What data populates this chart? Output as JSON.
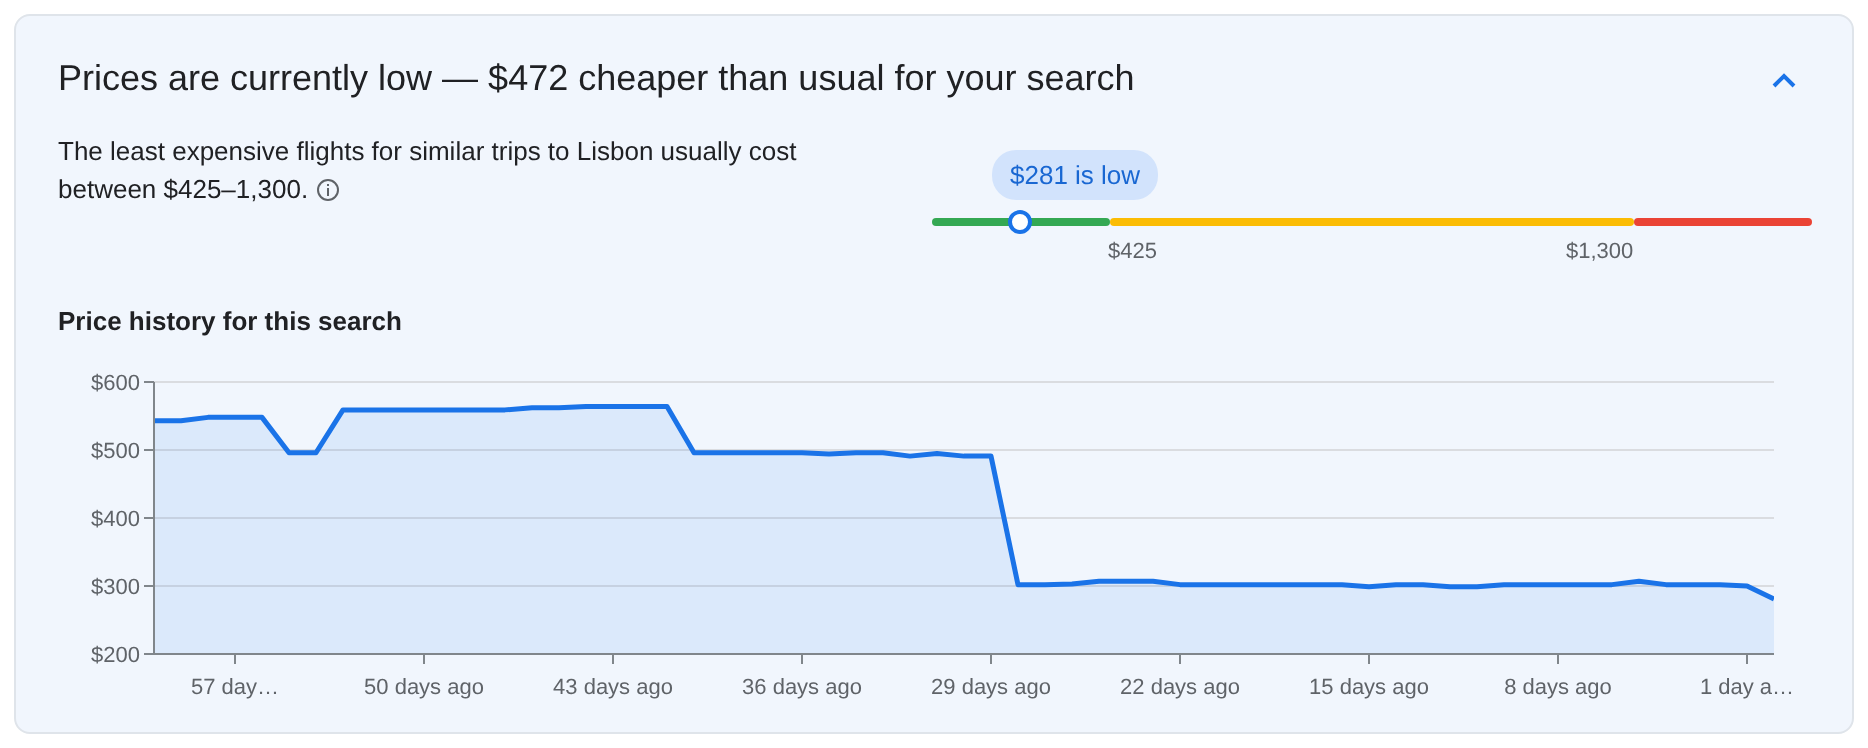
{
  "chart_data": [
    {
      "type": "other",
      "title": "Prices are currently low — $472 cheaper than usual for your search",
      "annotations": [
        "The least expensive flights for similar trips to Lisbon usually cost between $425–1,300.",
        "$281 is low",
        "$425",
        "$1,300"
      ]
    },
    {
      "type": "area",
      "title": "Price history for this search",
      "color": "#1a73e8",
      "grid": "y",
      "ylim": [
        200,
        600
      ],
      "yticks": [
        {
          "value": 200,
          "label": "$200"
        },
        {
          "value": 300,
          "label": "$300"
        },
        {
          "value": 400,
          "label": "$400"
        },
        {
          "value": 500,
          "label": "$500"
        },
        {
          "value": 600,
          "label": "$600"
        }
      ],
      "categories": [
        null,
        null,
        null,
        "57 day…",
        null,
        null,
        null,
        null,
        null,
        null,
        "50 days ago",
        null,
        null,
        null,
        null,
        null,
        null,
        "43 days ago",
        null,
        null,
        null,
        null,
        null,
        null,
        "36 days ago",
        null,
        null,
        null,
        null,
        null,
        null,
        "29 days ago",
        null,
        null,
        null,
        null,
        null,
        null,
        "22 days ago",
        null,
        null,
        null,
        null,
        null,
        null,
        "15 days ago",
        null,
        null,
        null,
        null,
        null,
        null,
        "8 days ago",
        null,
        null,
        null,
        null,
        null,
        null,
        "1 day a…",
        null
      ],
      "values": [
        543,
        543,
        548,
        548,
        548,
        496,
        496,
        559,
        559,
        559,
        559,
        559,
        559,
        559,
        562,
        562,
        564,
        564,
        564,
        564,
        496,
        496,
        496,
        496,
        496,
        494,
        496,
        496,
        491,
        495,
        491,
        491,
        302,
        302,
        303,
        307,
        307,
        307,
        302,
        302,
        302,
        302,
        302,
        302,
        302,
        299,
        302,
        302,
        299,
        299,
        302,
        302,
        302,
        302,
        302,
        307,
        302,
        302,
        302,
        300,
        281
      ]
    }
  ]
}
